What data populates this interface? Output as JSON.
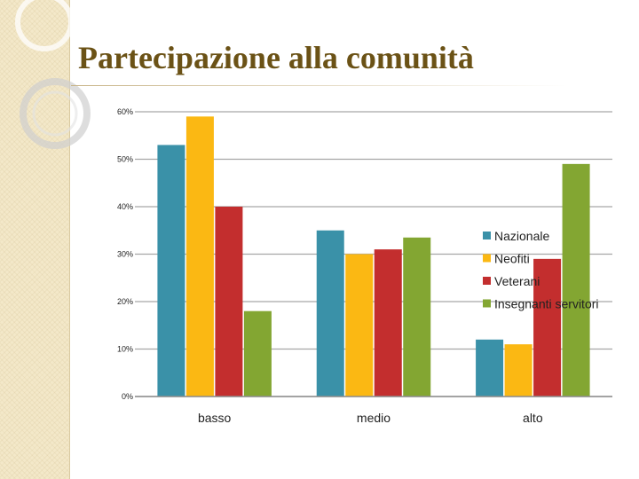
{
  "slide": {
    "title": "Partecipazione alla comunità"
  },
  "chart_data": {
    "type": "bar",
    "categories": [
      "basso",
      "medio",
      "alto"
    ],
    "series": [
      {
        "name": "Nazionale",
        "values": [
          53,
          35,
          12
        ],
        "color": "#3a91a8"
      },
      {
        "name": "Neofiti",
        "values": [
          59,
          30,
          11
        ],
        "color": "#fbb813"
      },
      {
        "name": "Veterani",
        "values": [
          40,
          31,
          29
        ],
        "color": "#c32e2e"
      },
      {
        "name": "Insegnanti servitori",
        "values": [
          18,
          33.5,
          49
        ],
        "color": "#83a632"
      }
    ],
    "ylim": [
      0,
      60
    ],
    "yticks": [
      "0%",
      "10%",
      "20%",
      "30%",
      "40%",
      "50%",
      "60%"
    ],
    "ytick_values": [
      0,
      10,
      20,
      30,
      40,
      50,
      60
    ],
    "grid": true,
    "legend": "right"
  }
}
